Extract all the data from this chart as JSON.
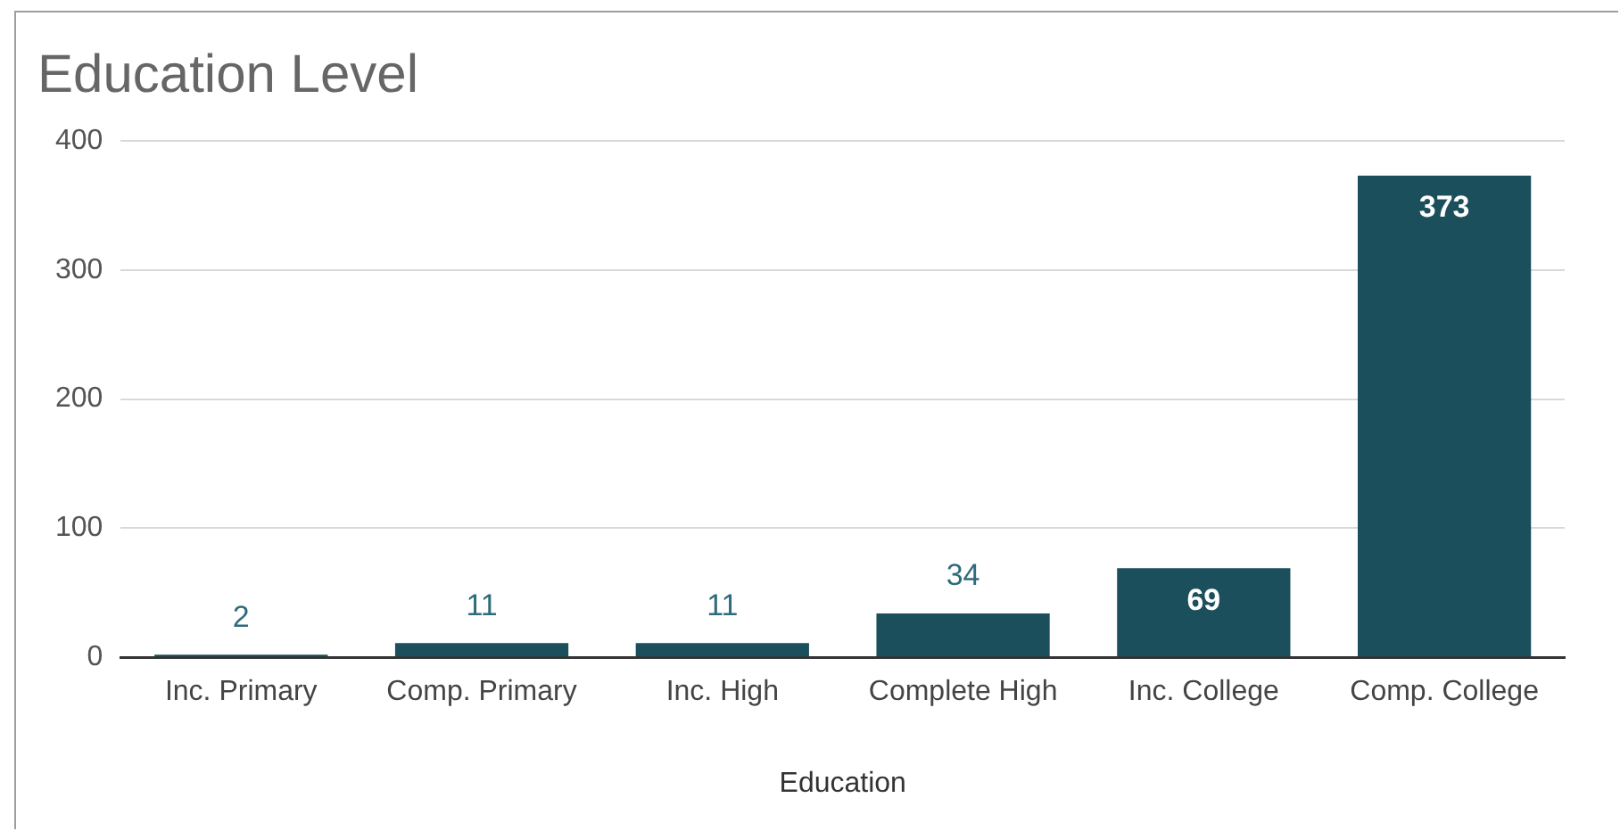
{
  "chart_data": {
    "type": "bar",
    "title": "Education Level",
    "xlabel": "Education",
    "categories": [
      "Inc. Primary",
      "Comp. Primary",
      "Inc. High",
      "Complete High",
      "Inc. College",
      "Comp. College"
    ],
    "values": [
      2,
      11,
      11,
      34,
      69,
      373
    ],
    "color": "#1a4f5b",
    "ylim": [
      0,
      400
    ],
    "yticks": [
      0,
      100,
      200,
      300,
      400
    ],
    "grid": "y",
    "data_labels": true
  }
}
